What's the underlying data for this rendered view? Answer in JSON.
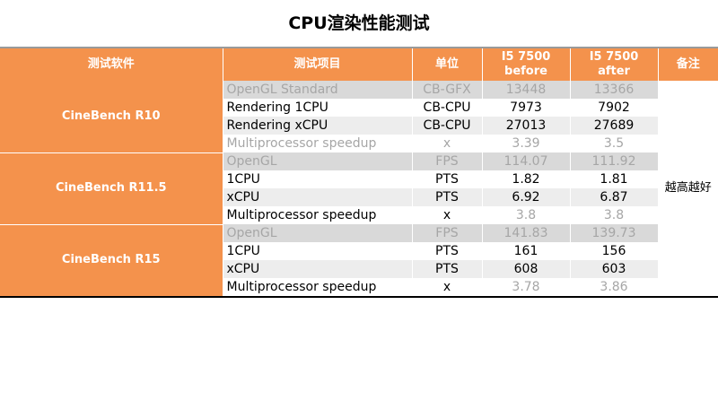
{
  "title": "CPU渲染性能测试",
  "headers": {
    "software": "测试软件",
    "item": "测试项目",
    "unit": "单位",
    "before_line1": "I5 7500",
    "before_line2": "before",
    "after_line1": "I5 7500",
    "after_line2": "after",
    "note": "备注"
  },
  "note": "越高越好",
  "groups": [
    {
      "software": "CineBench R10",
      "rows": [
        {
          "item": "OpenGL Standard",
          "unit": "CB-GFX",
          "before": "13448",
          "after": "13366"
        },
        {
          "item": "Rendering 1CPU",
          "unit": "CB-CPU",
          "before": "7973",
          "after": "7902"
        },
        {
          "item": "Rendering xCPU",
          "unit": "CB-CPU",
          "before": "27013",
          "after": "27689"
        },
        {
          "item": "Multiprocessor speedup",
          "unit": "x",
          "before": "3.39",
          "after": "3.5"
        }
      ]
    },
    {
      "software": "CineBench R11.5",
      "rows": [
        {
          "item": "OpenGL",
          "unit": "FPS",
          "before": "114.07",
          "after": "111.92"
        },
        {
          "item": "1CPU",
          "unit": "PTS",
          "before": "1.82",
          "after": "1.81"
        },
        {
          "item": "xCPU",
          "unit": "PTS",
          "before": "6.92",
          "after": "6.87"
        },
        {
          "item": "Multiprocessor speedup",
          "unit": "x",
          "before": "3.8",
          "after": "3.8"
        }
      ]
    },
    {
      "software": "CineBench R15",
      "rows": [
        {
          "item": "OpenGL",
          "unit": "FPS",
          "before": "141.83",
          "after": "139.73"
        },
        {
          "item": "1CPU",
          "unit": "PTS",
          "before": "161",
          "after": "156"
        },
        {
          "item": "xCPU",
          "unit": "PTS",
          "before": "608",
          "after": "603"
        },
        {
          "item": "Multiprocessor speedup",
          "unit": "x",
          "before": "3.78",
          "after": "3.86"
        }
      ]
    }
  ]
}
